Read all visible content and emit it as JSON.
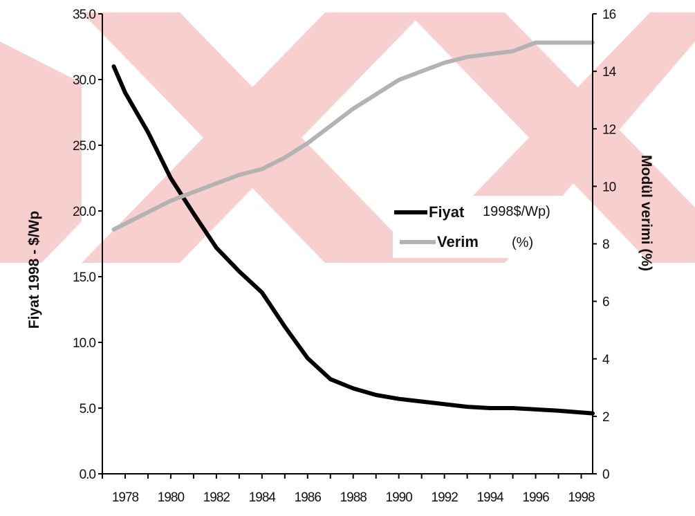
{
  "chart_data": {
    "type": "line",
    "x_tick_labels": [
      "1978",
      "1980",
      "1982",
      "1984",
      "1986",
      "1988",
      "1990",
      "1992",
      "1994",
      "1996",
      "1998"
    ],
    "x_range": [
      1977,
      1998.5
    ],
    "y_left": {
      "label": "Fiyat 1998 - $/Wp",
      "range": [
        0,
        35
      ],
      "tick_labels": [
        "0.0",
        "5.0",
        "10.0",
        "15.0",
        "20.0",
        "25.0",
        "30.0",
        "35.0"
      ],
      "tick_values": [
        0,
        5,
        10,
        15,
        20,
        25,
        30,
        35
      ]
    },
    "y_right": {
      "label": "Modül verimi (%)",
      "range": [
        0,
        16
      ],
      "tick_labels": [
        "0",
        "2",
        "4",
        "6",
        "8",
        "10",
        "12",
        "14",
        "16"
      ],
      "tick_values": [
        0,
        2,
        4,
        6,
        8,
        10,
        12,
        14,
        16
      ]
    },
    "series": [
      {
        "name": "Fiyat",
        "name_suffix": "1998$/Wp)",
        "axis": "left",
        "color": "#000000",
        "x": [
          1977.5,
          1978,
          1979,
          1980,
          1981,
          1982,
          1983,
          1984,
          1985,
          1986,
          1987,
          1988,
          1989,
          1990,
          1991,
          1992,
          1993,
          1994,
          1995,
          1996,
          1997,
          1998.5
        ],
        "y": [
          31.0,
          29.0,
          26.0,
          22.5,
          19.8,
          17.2,
          15.4,
          13.8,
          11.2,
          8.8,
          7.2,
          6.5,
          6.0,
          5.7,
          5.5,
          5.3,
          5.1,
          5.0,
          5.0,
          4.9,
          4.8,
          4.6
        ]
      },
      {
        "name": "Verim",
        "name_suffix": "(%)",
        "axis": "right",
        "color": "#b3b3b3",
        "x": [
          1977.5,
          1978,
          1979,
          1980,
          1981,
          1982,
          1983,
          1984,
          1985,
          1986,
          1987,
          1988,
          1989,
          1990,
          1991,
          1992,
          1993,
          1994,
          1995,
          1996,
          1997,
          1998.5
        ],
        "y": [
          8.5,
          8.7,
          9.1,
          9.5,
          9.8,
          10.1,
          10.4,
          10.6,
          11.0,
          11.5,
          12.1,
          12.7,
          13.2,
          13.7,
          14.0,
          14.3,
          14.5,
          14.6,
          14.7,
          15.0,
          15.0,
          15.0
        ]
      }
    ],
    "legend_position": "center-right",
    "grid": false
  },
  "colors": {
    "watermark": "#f8cfcf",
    "price_line": "#000000",
    "efficiency_line": "#b3b3b3"
  }
}
